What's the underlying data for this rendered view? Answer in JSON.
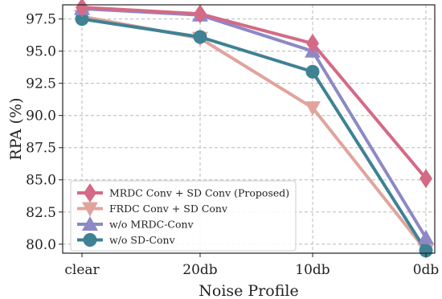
{
  "chart_data": {
    "type": "line",
    "xlabel": "Noise Profile",
    "ylabel": "RPA (%)",
    "categories": [
      "clear",
      "20db",
      "10db",
      "0db"
    ],
    "ylim": [
      79.3,
      98.6
    ],
    "yticks": [
      80.0,
      82.5,
      85.0,
      87.5,
      90.0,
      92.5,
      95.0,
      97.5
    ],
    "ytick_labels": [
      "80.0",
      "82.5",
      "85.0",
      "87.5",
      "90.0",
      "92.5",
      "95.0",
      "97.5"
    ],
    "grid": true,
    "legend_position": "lower-left",
    "series": [
      {
        "name": "MRDC Conv + SD Conv (Proposed)",
        "values": [
          98.4,
          97.9,
          95.6,
          85.1
        ],
        "color": "#d46a86",
        "marker": "diamond"
      },
      {
        "name": "FRDC Conv + SD Conv",
        "values": [
          97.7,
          96.0,
          90.6,
          79.5
        ],
        "color": "#e0a49c",
        "marker": "triangle-down"
      },
      {
        "name": "w/o MRDC-Conv",
        "values": [
          98.3,
          97.8,
          95.0,
          80.5
        ],
        "color": "#8c89c6",
        "marker": "triangle-up"
      },
      {
        "name": "w/o SD-Conv",
        "values": [
          97.5,
          96.1,
          93.4,
          79.5
        ],
        "color": "#3e8294",
        "marker": "circle"
      }
    ]
  }
}
